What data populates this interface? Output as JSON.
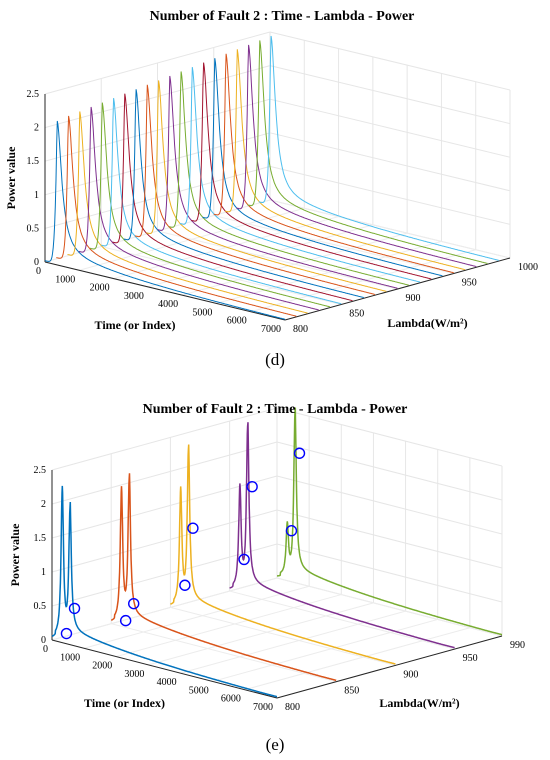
{
  "panel_d": {
    "caption": "(d)"
  },
  "panel_e": {
    "caption": "(e)"
  },
  "chart_data": [
    {
      "type": "line",
      "panel": "d",
      "title": "Number of Fault 2 : Time - Lambda - Power",
      "xlabel": "Time (or Index)",
      "ylabel": "Lambda(W/m²)",
      "zlabel": "Power value",
      "x_ticks": [
        "0",
        "1000",
        "2000",
        "3000",
        "4000",
        "5000",
        "6000",
        "7000"
      ],
      "y_ticks": [
        "800",
        "850",
        "900",
        "950",
        "1000"
      ],
      "z_ticks": [
        "0",
        "0.5",
        "1",
        "1.5",
        "2",
        "2.5"
      ],
      "xlim": [
        0,
        7000
      ],
      "ylim": [
        800,
        1000
      ],
      "zlim": [
        0,
        2.5
      ],
      "grid": true,
      "series_count": 20,
      "lambda_values": [
        800,
        810,
        820,
        830,
        840,
        850,
        860,
        870,
        880,
        890,
        900,
        910,
        920,
        930,
        940,
        950,
        960,
        970,
        980,
        990
      ],
      "peak_power": [
        2.15,
        2.18,
        2.2,
        2.22,
        2.24,
        2.26,
        2.28,
        2.3,
        2.32,
        2.34,
        2.36,
        2.38,
        2.4,
        2.42,
        2.44,
        2.46,
        2.48,
        2.5,
        2.52,
        2.54
      ],
      "peak_time": 350
    },
    {
      "type": "line",
      "panel": "e",
      "title": "Number of Fault 2 : Time - Lambda - Power",
      "xlabel": "Time (or Index)",
      "ylabel": "Lambda(W/m²)",
      "zlabel": "Power value",
      "x_ticks": [
        "0",
        "1000",
        "2000",
        "3000",
        "4000",
        "5000",
        "6000",
        "7000"
      ],
      "y_ticks": [
        "800",
        "850",
        "900",
        "950",
        "990"
      ],
      "z_ticks": [
        "0",
        "0.5",
        "1",
        "1.5",
        "2",
        "2.5"
      ],
      "xlim": [
        0,
        7000
      ],
      "ylim": [
        800,
        990
      ],
      "zlim": [
        0,
        2.5
      ],
      "grid": true,
      "series": [
        {
          "lambda": 800,
          "color": "#0072BD",
          "peak1": 2.2,
          "peak2": 1.9,
          "fault_markers": [
            {
              "time": 450,
              "power": 0.15
            },
            {
              "time": 700,
              "power": 0.55
            }
          ]
        },
        {
          "lambda": 850,
          "color": "#D95319",
          "peak1": 1.95,
          "peak2": 2.1,
          "fault_markers": [
            {
              "time": 450,
              "power": 0.1
            },
            {
              "time": 700,
              "power": 0.38
            }
          ]
        },
        {
          "lambda": 900,
          "color": "#EDB120",
          "peak1": 1.7,
          "peak2": 2.3,
          "fault_markers": [
            {
              "time": 450,
              "power": 0.38
            },
            {
              "time": 700,
              "power": 1.25
            }
          ]
        },
        {
          "lambda": 950,
          "color": "#7E2F8E",
          "peak1": 1.5,
          "peak2": 2.4,
          "fault_markers": [
            {
              "time": 450,
              "power": 0.52
            },
            {
              "time": 700,
              "power": 1.62
            }
          ]
        },
        {
          "lambda": 990,
          "color": "#77AC30",
          "peak1": 0.75,
          "peak2": 2.45,
          "fault_markers": [
            {
              "time": 450,
              "power": 0.75
            },
            {
              "time": 700,
              "power": 1.92
            }
          ]
        }
      ]
    }
  ]
}
